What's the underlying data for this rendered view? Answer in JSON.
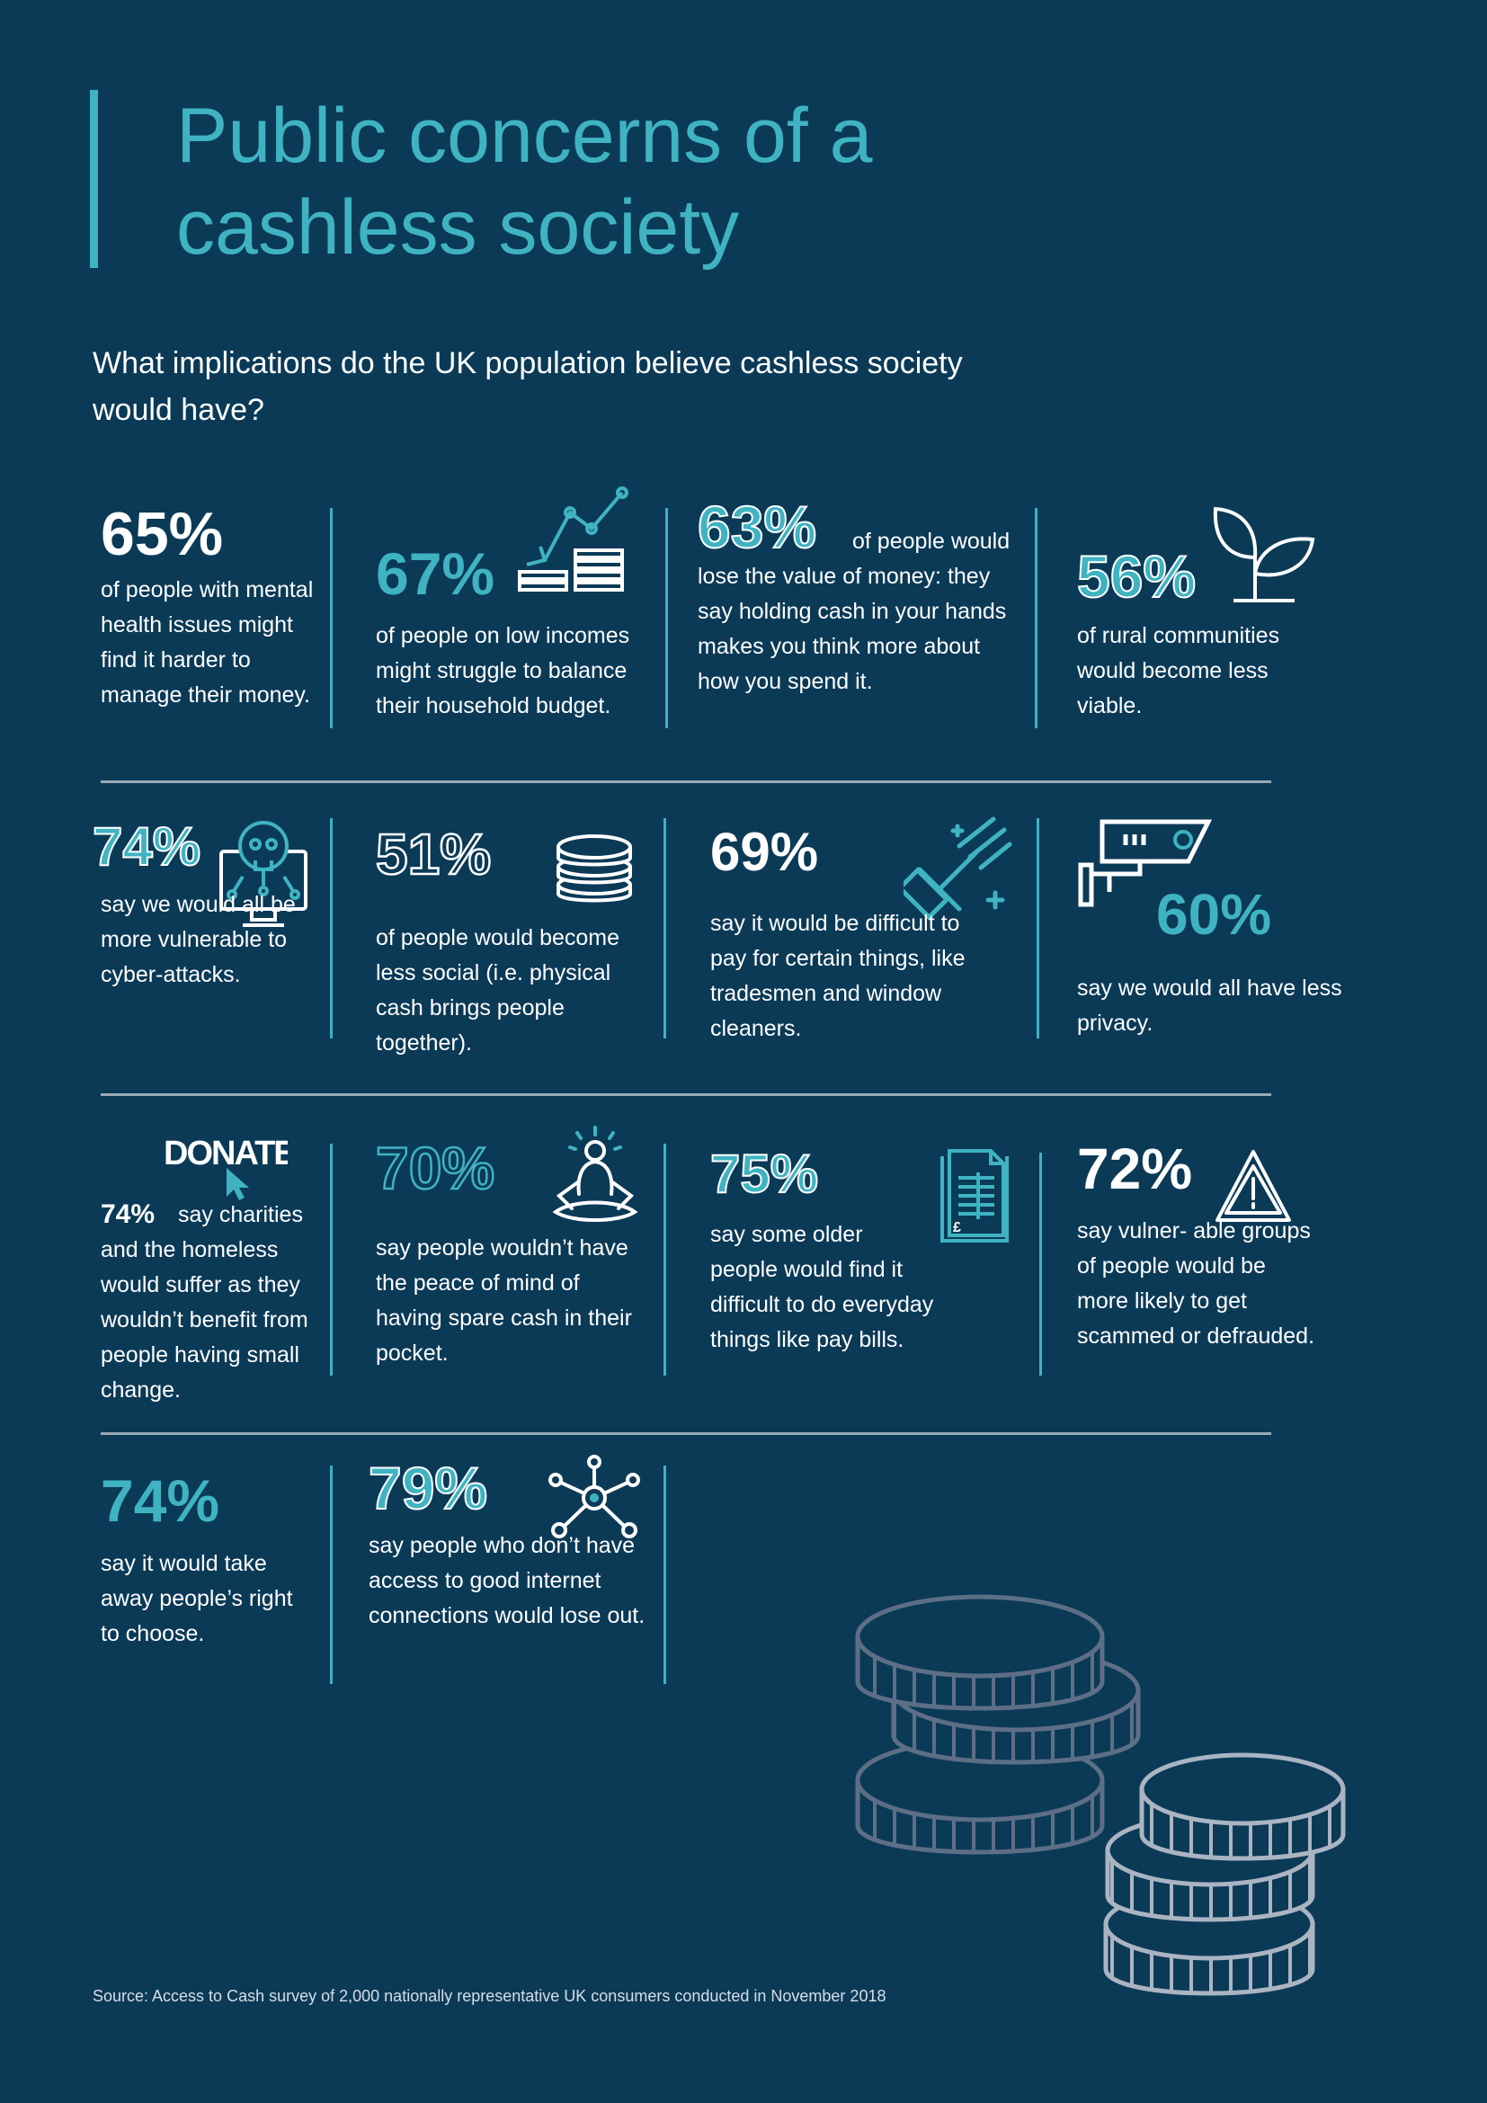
{
  "header": {
    "title_line1": "Public concerns of a",
    "title_line2": "cashless society",
    "subtitle": "What implications do the UK population believe cashless society would have?"
  },
  "stats": [
    {
      "pct": "65%",
      "text": "of people with mental health issues might find it harder to manage their money."
    },
    {
      "pct": "67%",
      "text": "of people on low incomes might struggle to balance their household budget."
    },
    {
      "pct": "63%",
      "text_inline": "of people would",
      "text": "lose the value of money: they say holding cash in your hands makes you think more about how you spend it."
    },
    {
      "pct": "56%",
      "text": "of rural communities would become less viable."
    },
    {
      "pct": "74%",
      "text": "say we would all be more vulnerable to cyber-attacks."
    },
    {
      "pct": "51%",
      "text": "of people would become less social (i.e. physical cash brings people together)."
    },
    {
      "pct": "69%",
      "text": "say it would be difficult to pay for certain things, like tradesmen and window cleaners."
    },
    {
      "pct": "60%",
      "text": "say we would all have less privacy."
    },
    {
      "pct": "74%",
      "icon_label": "DONATE",
      "text_inline": "say charities",
      "text": "and the homeless would suffer as they wouldn’t benefit from people having small change."
    },
    {
      "pct": "70%",
      "text": "say people wouldn’t have the peace of mind of having spare cash in their pocket."
    },
    {
      "pct": "75%",
      "text": "say some older people would find it difficult to do everyday things like pay bills."
    },
    {
      "pct": "72%",
      "text": "say vulner- able groups of people would be more likely to get scammed or defrauded."
    },
    {
      "pct": "74%",
      "text": "say it would take away people’s right to choose."
    },
    {
      "pct": "79%",
      "text": "say people who don’t have access to good internet connections would lose out."
    }
  ],
  "icons": {
    "stat1": "chart-and-stacked-cash-icon",
    "stat3": "plant-icon",
    "stat4": "skull-monitor-icon",
    "stat5": "coin-stack-icon",
    "stat6": "window-squeegee-icon",
    "stat7": "cctv-camera-icon",
    "stat8": "donate-cursor-icon",
    "stat9": "meditation-icon",
    "stat10": "bill-document-icon",
    "stat11": "warning-triangle-icon",
    "stat13": "network-nodes-icon",
    "decor": "coins-decoration-icon"
  },
  "footer": {
    "source": "Source: Access to Cash survey of 2,000 nationally representative UK consumers conducted in November 2018"
  }
}
